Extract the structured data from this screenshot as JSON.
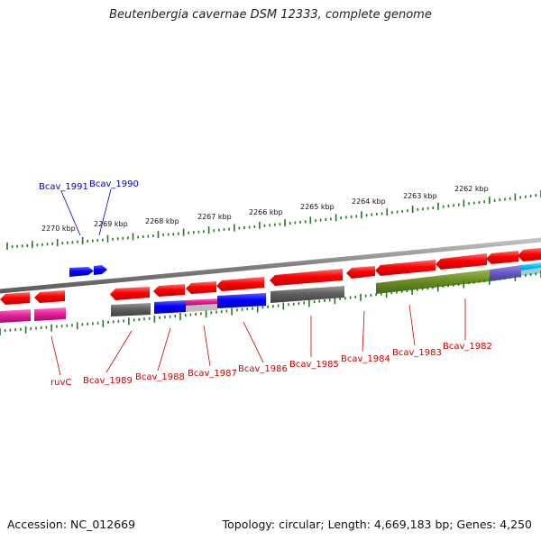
{
  "title": "Beutenbergia cavernae DSM 12333, complete genome",
  "footer": {
    "accession": "Accession: NC_012669",
    "topology": "Topology: circular; Length: 4,669,183 bp; Genes: 4,250"
  },
  "scale_labels": [
    "2270 kbp",
    "2269 kbp",
    "2268 kbp",
    "2267 kbp",
    "2266 kbp",
    "2265 kbp",
    "2264 kbp",
    "2263 kbp",
    "2262 kbp"
  ],
  "gene_labels_top": [
    "Bcav_1991",
    "Bcav_1990"
  ],
  "gene_labels_bottom": [
    "ruvC",
    "Bcav_1989",
    "Bcav_1988",
    "Bcav_1987",
    "Bcav_1986",
    "Bcav_1985",
    "Bcav_1984",
    "Bcav_1983",
    "Bcav_1982"
  ],
  "colors": {
    "gene_red": "#ff0000",
    "gene_blue": "#0000ff",
    "gene_magenta": "#e8209a",
    "gene_gray": "#606060",
    "gene_olive": "#6b8e23",
    "gene_slate": "#6a5acd",
    "gene_cyan": "#00c8ff",
    "tick_green": "#1f7a1f",
    "label_red": "#cc0000",
    "label_blue": "#0000cc",
    "backbone": "#888888"
  }
}
